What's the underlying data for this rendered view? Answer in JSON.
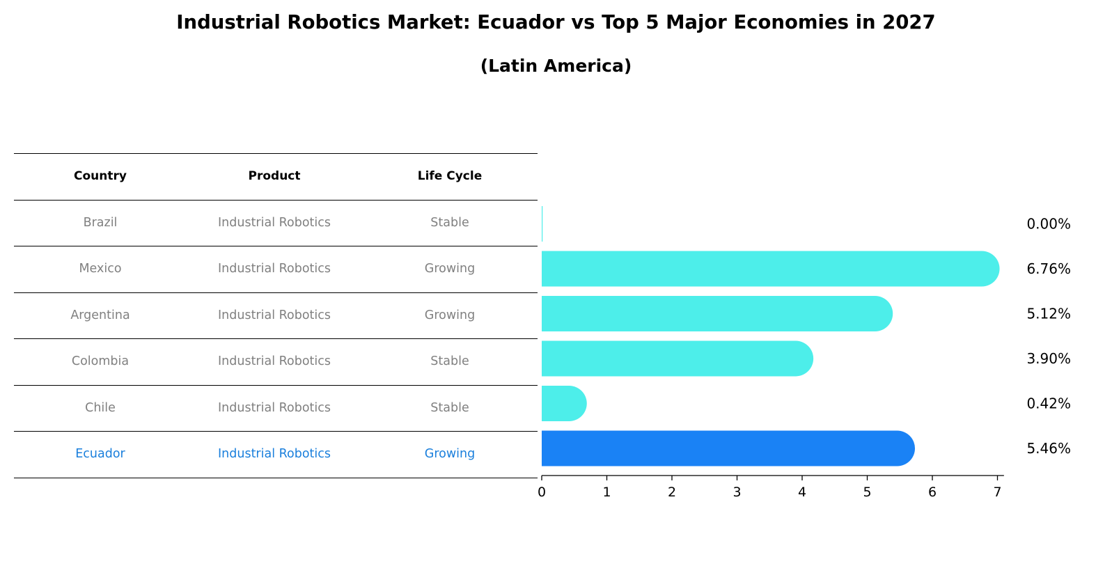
{
  "title": "Industrial Robotics Market: Ecuador vs Top 5 Major Economies in 2027",
  "subtitle": "(Latin America)",
  "table": {
    "headers": [
      "Country",
      "Product",
      "Life Cycle"
    ],
    "rows": [
      {
        "country": "Brazil",
        "product": "Industrial Robotics",
        "life_cycle": "Stable"
      },
      {
        "country": "Mexico",
        "product": "Industrial Robotics",
        "life_cycle": "Growing"
      },
      {
        "country": "Argentina",
        "product": "Industrial Robotics",
        "life_cycle": "Growing"
      },
      {
        "country": "Colombia",
        "product": "Industrial Robotics",
        "life_cycle": "Stable"
      },
      {
        "country": "Chile",
        "product": "Industrial Robotics",
        "life_cycle": "Stable"
      },
      {
        "country": "Ecuador",
        "product": "Industrial Robotics",
        "life_cycle": "Growing"
      }
    ]
  },
  "chart_data": {
    "type": "bar",
    "orientation": "horizontal",
    "title": "Industrial Robotics Market: Ecuador vs Top 5 Major Economies in 2027",
    "subtitle": "(Latin America)",
    "categories": [
      "Brazil",
      "Mexico",
      "Argentina",
      "Colombia",
      "Chile",
      "Ecuador"
    ],
    "values": [
      0.0,
      6.76,
      5.12,
      3.9,
      0.42,
      5.46
    ],
    "value_labels": [
      "0.00%",
      "6.76%",
      "5.12%",
      "3.90%",
      "0.42%",
      "5.46%"
    ],
    "highlight": "Ecuador",
    "colors": {
      "default": "#4deeea",
      "highlight": "#1a82f5"
    },
    "xlim": [
      0,
      7.1
    ],
    "xticks": [
      0,
      1,
      2,
      3,
      4,
      5,
      6,
      7
    ],
    "xlabel": "",
    "ylabel": ""
  }
}
